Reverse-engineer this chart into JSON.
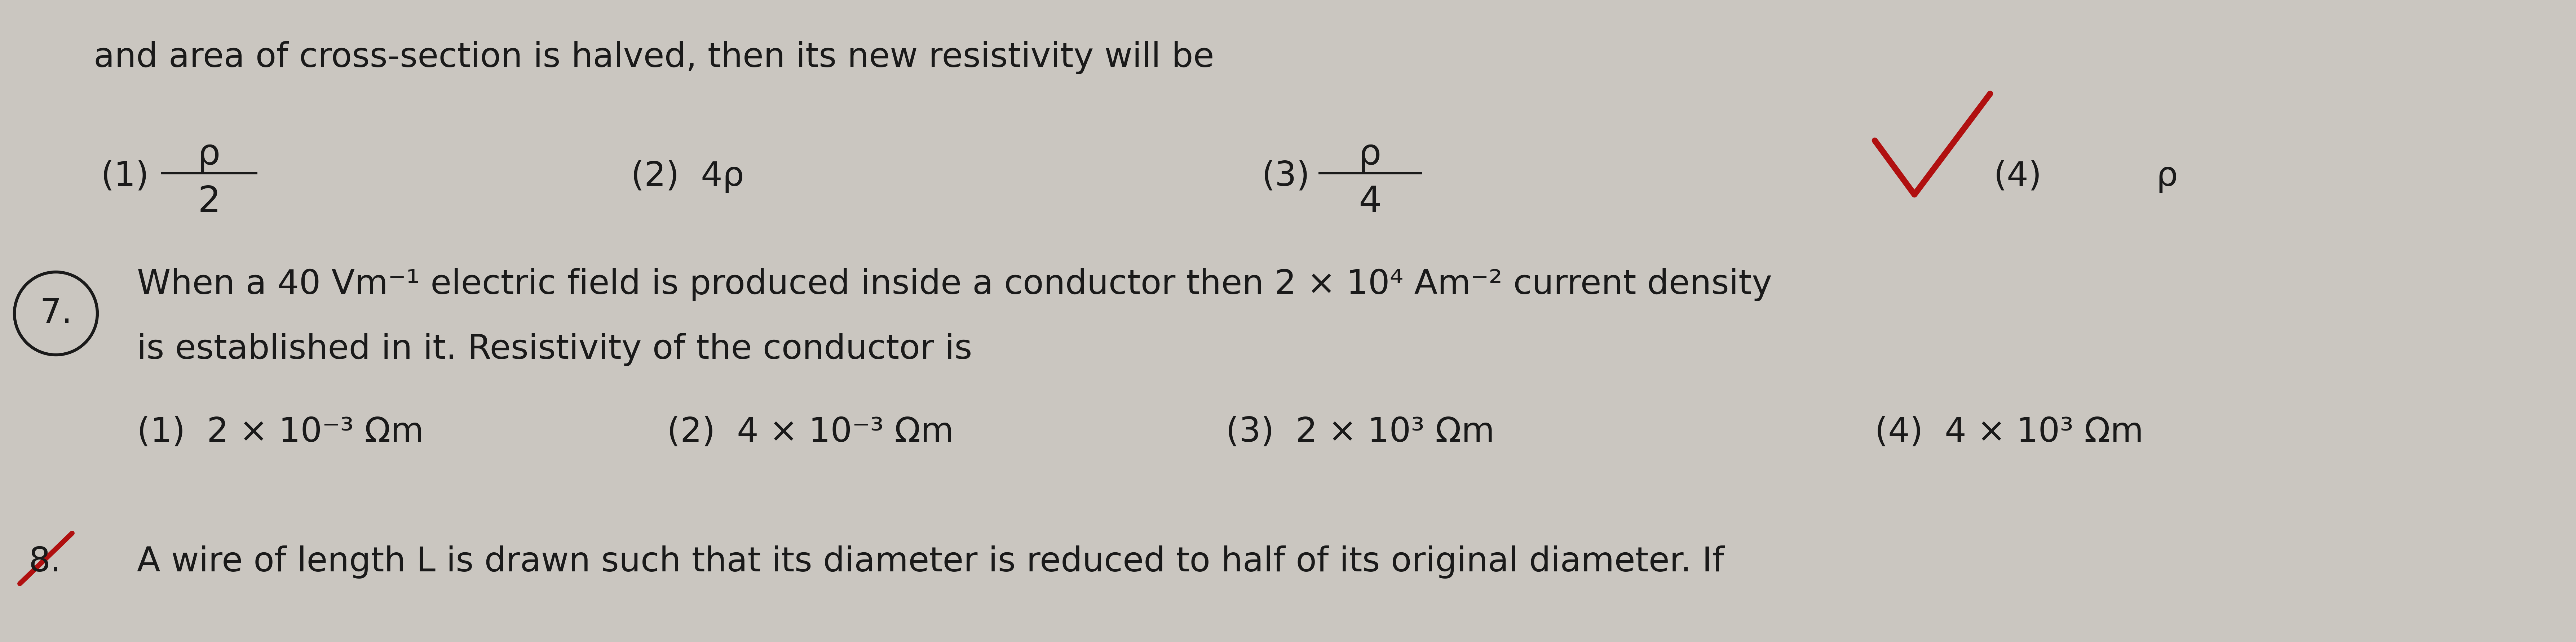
{
  "bg_color": "#cac6c0",
  "text_color": "#1a1a1a",
  "red_color": "#b01010",
  "fig_width": 71.46,
  "fig_height": 17.82,
  "dpi": 100,
  "line1": "and area of cross-section is halved, then its new resistivity will be",
  "opt1_label": "(1)",
  "opt1_num": "ρ",
  "opt1_den": "2",
  "opt2": "(2)  4ρ",
  "opt3_label": "(3)",
  "opt3_num": "ρ",
  "opt3_den": "4",
  "opt4_label": "(4)",
  "opt4_val": "ρ",
  "q7_num": "7.",
  "q7_line1": "When a 40 Vm⁻¹ electric field is produced inside a conductor then 2 × 10⁴ Am⁻² current density",
  "q7_line2": "is established in it. Resistivity of the conductor is",
  "q7_opt1": "(1)  2 × 10⁻³ Ωm",
  "q7_opt2": "(2)  4 × 10⁻³ Ωm",
  "q7_opt3": "(3)  2 × 10³ Ωm",
  "q7_opt4": "(4)  4 × 10³ Ωm",
  "q8_start": "8.",
  "q8_line": "A wire of length L is drawn such that its diameter is reduced to half of its original diameter. If"
}
